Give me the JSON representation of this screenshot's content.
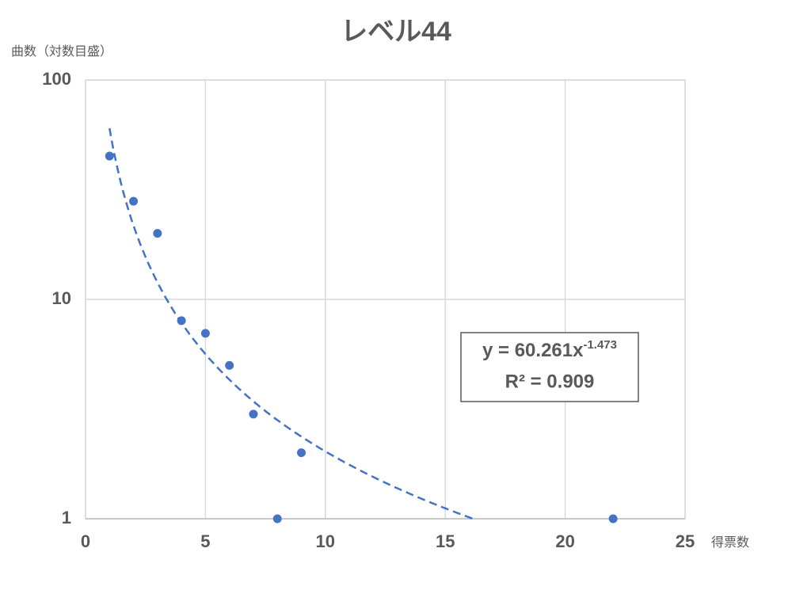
{
  "chart_data": {
    "type": "scatter",
    "title": "レベル44",
    "x_label": "得票数",
    "y_label": "曲数（対数目盛）",
    "x": [
      1,
      2,
      3,
      4,
      5,
      6,
      7,
      8,
      9,
      22
    ],
    "values": [
      45,
      28,
      20,
      8,
      7,
      5,
      3,
      1,
      2,
      1
    ],
    "color": "#4472c4",
    "xlim": [
      0,
      25
    ],
    "xticks": [
      0,
      5,
      10,
      15,
      20,
      25
    ],
    "ylim": [
      1,
      100
    ],
    "yticks": [
      1,
      10,
      100
    ],
    "y_scale": "log",
    "grid": true,
    "trendline": {
      "type": "power",
      "coefficient": 60.261,
      "exponent": -1.473,
      "equation_label": "y = 60.261x",
      "exponent_label": "-1.473",
      "r2_label": "R² = 0.909"
    }
  }
}
